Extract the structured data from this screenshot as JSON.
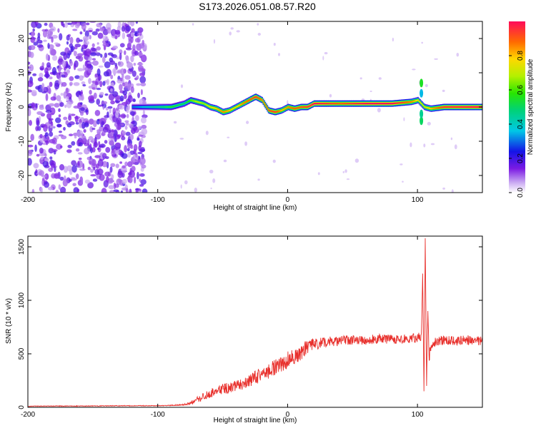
{
  "title": "S173.2026.051.08.57.R20",
  "chart_data": [
    {
      "type": "heatmap",
      "name": "spectrogram",
      "xlabel": "Height of straight line (km)",
      "ylabel": "Frequency (Hz)",
      "xlim": [
        -200,
        150
      ],
      "ylim": [
        -25,
        25
      ],
      "xticks": [
        -200,
        -100,
        0,
        100
      ],
      "yticks": [
        -20,
        -10,
        0,
        10,
        20
      ],
      "colorbar": {
        "label": "Normalized spectral amplitude",
        "range": [
          0,
          1
        ],
        "ticks": [
          0.0,
          0.2,
          0.4,
          0.6,
          0.8
        ]
      },
      "ridge": {
        "start_km": -120,
        "x": [
          -120,
          -100,
          -90,
          -80,
          -75,
          -70,
          -65,
          -60,
          -55,
          -50,
          -45,
          -40,
          -35,
          -30,
          -25,
          -20,
          -15,
          -10,
          -5,
          0,
          5,
          10,
          15,
          20,
          40,
          60,
          80,
          95,
          100,
          105,
          110,
          120,
          150
        ],
        "y": [
          0,
          0,
          0,
          1,
          2,
          1.5,
          1,
          0,
          -0.5,
          -1.5,
          -1,
          0,
          1,
          2,
          3,
          2,
          -1,
          -1.5,
          -1,
          0,
          -0.5,
          0,
          0,
          1,
          1,
          1,
          1,
          1.5,
          2,
          0,
          -0.5,
          0,
          0
        ],
        "amp": [
          0.3,
          0.45,
          0.55,
          0.5,
          0.6,
          0.7,
          0.65,
          0.75,
          0.8,
          0.85,
          0.8,
          0.75,
          0.85,
          0.9,
          0.95,
          0.85,
          0.9,
          0.95,
          0.8,
          0.85,
          0.9,
          0.9,
          0.95,
          1.0,
          0.9,
          1.0,
          1.0,
          0.85,
          0.75,
          0.7,
          0.8,
          0.95,
          1.0
        ]
      }
    },
    {
      "type": "line",
      "name": "snr",
      "xlabel": "Height of straight line (km)",
      "ylabel": "SNR (10 * v/v)",
      "xlim": [
        -200,
        150
      ],
      "ylim": [
        0,
        1600
      ],
      "xticks": [
        -200,
        -100,
        0,
        100
      ],
      "yticks": [
        0,
        500,
        1000,
        1500
      ],
      "color": "#e8302c",
      "series": [
        {
          "name": "SNR",
          "x": [
            -200,
            -180,
            -160,
            -140,
            -120,
            -100,
            -90,
            -80,
            -75,
            -70,
            -65,
            -60,
            -55,
            -50,
            -45,
            -40,
            -35,
            -30,
            -25,
            -20,
            -15,
            -10,
            -5,
            0,
            5,
            10,
            15,
            20,
            25,
            30,
            40,
            50,
            60,
            70,
            80,
            90,
            95,
            100,
            103,
            104,
            105,
            106,
            107,
            108,
            109,
            110,
            112,
            115,
            120,
            130,
            140,
            150
          ],
          "y": [
            10,
            12,
            12,
            14,
            15,
            15,
            18,
            25,
            40,
            70,
            100,
            130,
            150,
            170,
            180,
            200,
            220,
            250,
            280,
            310,
            340,
            370,
            400,
            440,
            480,
            520,
            560,
            590,
            600,
            610,
            620,
            630,
            630,
            640,
            640,
            640,
            645,
            650,
            660,
            1250,
            150,
            1580,
            200,
            900,
            450,
            560,
            600,
            620,
            630,
            620,
            630,
            620
          ],
          "jitter": [
            3,
            3,
            3,
            3,
            3,
            3,
            4,
            6,
            15,
            25,
            35,
            40,
            45,
            50,
            55,
            55,
            60,
            65,
            70,
            70,
            75,
            75,
            75,
            80,
            80,
            80,
            70,
            60,
            50,
            50,
            45,
            45,
            45,
            45,
            45,
            45,
            45,
            45,
            40,
            0,
            0,
            0,
            0,
            0,
            60,
            50,
            45,
            45,
            45,
            45,
            45,
            45
          ]
        }
      ]
    }
  ]
}
